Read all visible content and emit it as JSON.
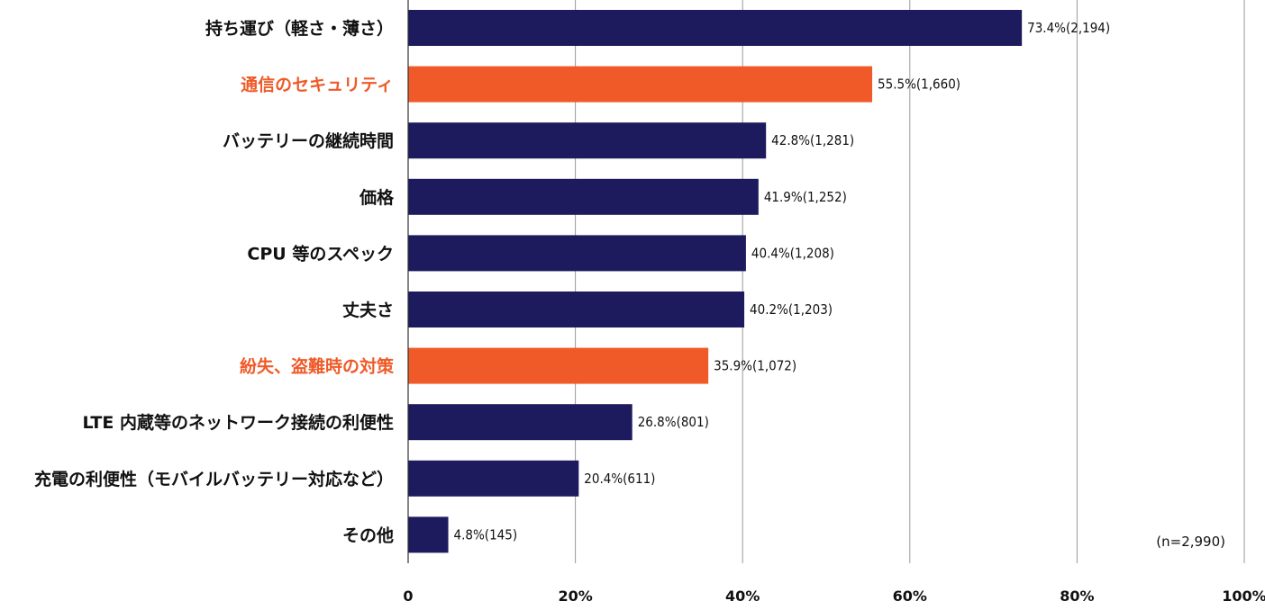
{
  "chart_data": {
    "type": "bar",
    "orientation": "horizontal",
    "categories": [
      "持ち運び（軽さ・薄さ）",
      "通信のセキュリティ",
      "バッテリーの継続時間",
      "価格",
      "CPU 等のスペック",
      "丈夫さ",
      "紛失、盗難時の対策",
      "LTE 内蔵等のネットワーク接続の利便性",
      "充電の利便性（モバイルバッテリー対応など）",
      "その他"
    ],
    "values": [
      73.4,
      55.5,
      42.8,
      41.9,
      40.4,
      40.2,
      35.9,
      26.8,
      20.4,
      4.8
    ],
    "value_labels": [
      "73.4%(2,194)",
      "55.5%(1,660)",
      "42.8%(1,281)",
      "41.9%(1,252)",
      "40.4%(1,208)",
      "40.2%(1,203)",
      "35.9%(1,072)",
      "26.8%(801)",
      "20.4%(611)",
      "4.8%(145)"
    ],
    "highlighted": [
      false,
      true,
      false,
      false,
      false,
      false,
      true,
      false,
      false,
      false
    ],
    "x_ticks": [
      0,
      20,
      40,
      60,
      80,
      100
    ],
    "x_tick_labels": [
      "0",
      "20%",
      "40%",
      "60%",
      "80%",
      "100%"
    ],
    "xlim": [
      0,
      100
    ],
    "grid": "vertical",
    "note": "(n=2,990)",
    "colors": {
      "bar": "#1e1a5e",
      "bar_highlight": "#ef5a28",
      "label": "#111111",
      "label_highlight": "#ef5a28",
      "grid": "#9a9a9a",
      "axis": "#333333"
    }
  }
}
